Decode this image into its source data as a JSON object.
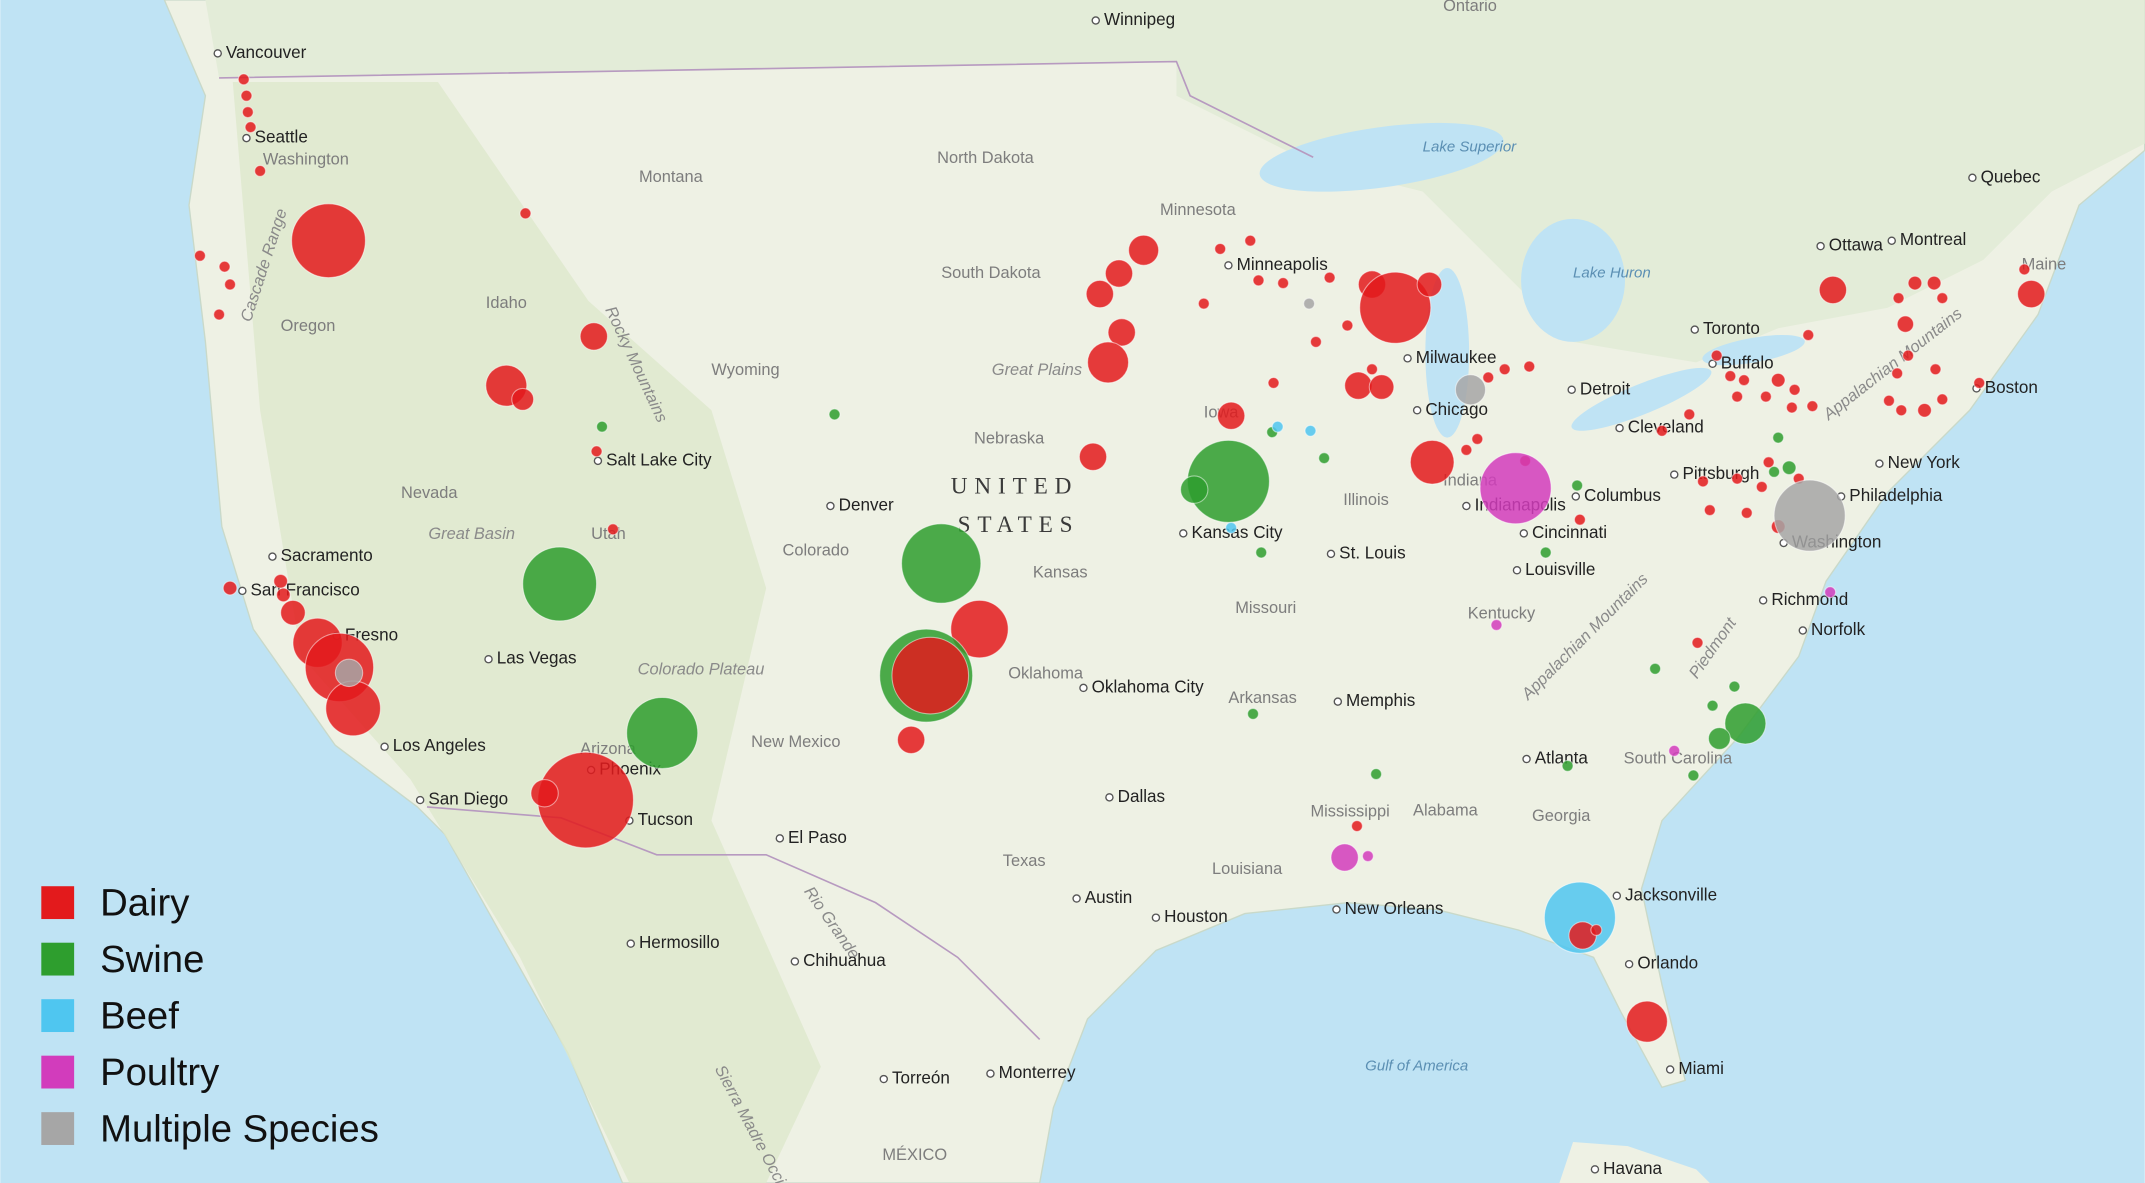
{
  "map": {
    "labels": [
      "Winnipeg",
      "Ontario",
      "Vancouver",
      "Seattle",
      "Washington",
      "Montana",
      "North Dakota",
      "Minnesota",
      "South Dakota",
      "Lake Superior",
      "Quebec",
      "Ottawa",
      "Montreal",
      "Maine",
      "Minneapolis",
      "Lake Huron",
      "Toronto",
      "Buffalo",
      "Idaho",
      "Oregon",
      "Cascade Range",
      "Rocky Mountains",
      "Wyoming",
      "Great Plains",
      "Milwaukee",
      "Detroit",
      "Boston",
      "Appalachian Mountains",
      "Chicago",
      "Cleveland",
      "Salt Lake City",
      "Nebraska",
      "Iowa",
      "New York",
      "Pittsburgh",
      "Nevada",
      "Denver",
      "UNITED",
      "STATES",
      "Illinois",
      "Indiana",
      "Columbus",
      "Indianapolis",
      "Philadelphia",
      "Cincinnati",
      "Great Basin",
      "Utah",
      "Colorado",
      "Kansas City",
      "Sacramento",
      "Kansas",
      "St. Louis",
      "Louisville",
      "Washington",
      "San Francisco",
      "Missouri",
      "Richmond",
      "Fresno",
      "Kentucky",
      "Norfolk",
      "Las Vegas",
      "Colorado Plateau",
      "Oklahoma",
      "Oklahoma City",
      "Arkansas",
      "Memphis",
      "Piedmont",
      "Appalachian Mountains",
      "Los Angeles",
      "Arizona",
      "New Mexico",
      "Atlanta",
      "South Carolina",
      "Phoenix",
      "Tucson",
      "San Diego",
      "Dallas",
      "Mississippi",
      "Alabama",
      "Georgia",
      "El Paso",
      "Rio Grande",
      "Texas",
      "Louisiana",
      "Austin",
      "Houston",
      "New Orleans",
      "Jacksonville",
      "Hermosillo",
      "Chihuahua",
      "Orlando",
      "Sierra Madre Occidental",
      "Gulf of America",
      "Miami",
      "Torreón",
      "Monterrey",
      "MÉXICO",
      "Havana"
    ]
  },
  "legend": {
    "items": [
      {
        "label": "Dairy",
        "color": "#e31a1c"
      },
      {
        "label": "Swine",
        "color": "#2e9e2e"
      },
      {
        "label": "Beef",
        "color": "#4fc6f0"
      },
      {
        "label": "Poultry",
        "color": "#d23cbc"
      },
      {
        "label": "Multiple Species",
        "color": "#a6a6a6"
      }
    ]
  }
}
